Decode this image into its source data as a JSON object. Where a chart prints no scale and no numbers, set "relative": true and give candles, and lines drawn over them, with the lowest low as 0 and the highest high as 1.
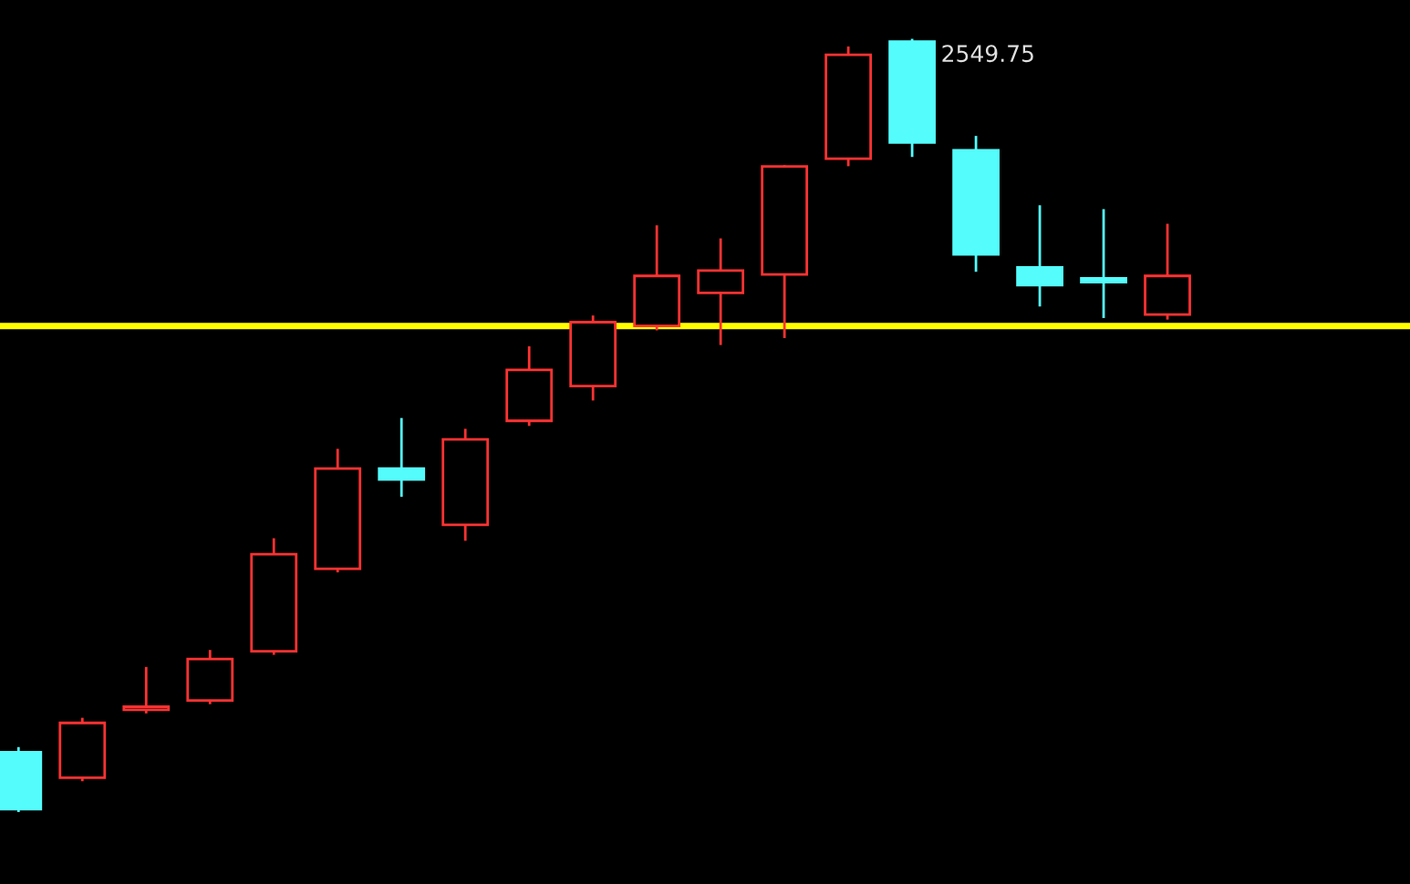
{
  "chart_data": {
    "type": "candlestick",
    "relative": true,
    "categories": [
      null,
      null,
      null,
      null,
      null,
      null,
      null,
      null,
      null,
      null,
      null,
      null,
      null,
      null,
      null,
      null,
      null,
      null,
      null
    ],
    "ohlc": [
      [
        0.076,
        0.081,
        0,
        0.002
      ],
      [
        0.043,
        0.119,
        0.04,
        0.114
      ],
      [
        0.131,
        0.185,
        0.128,
        0.135
      ],
      [
        0.143,
        0.207,
        0.14,
        0.197
      ],
      [
        0.207,
        0.352,
        0.204,
        0.333
      ],
      [
        0.314,
        0.468,
        0.311,
        0.444
      ],
      [
        0.444,
        0.508,
        0.409,
        0.43
      ],
      [
        0.371,
        0.494,
        0.352,
        0.482
      ],
      [
        0.506,
        0.601,
        0.501,
        0.572
      ],
      [
        0.551,
        0.641,
        0.534,
        0.634
      ],
      [
        0.629,
        0.758,
        0.625,
        0.694
      ],
      [
        0.672,
        0.741,
        0.606,
        0.701
      ],
      [
        0.696,
        0.836,
        0.615,
        0.836
      ],
      [
        0.846,
        0.99,
        0.838,
        0.981
      ],
      [
        0.998,
        1,
        0.85,
        0.867
      ],
      [
        0.857,
        0.874,
        0.701,
        0.722
      ],
      [
        0.705,
        0.784,
        0.656,
        0.682
      ],
      [
        0.691,
        0.779,
        0.641,
        0.686
      ],
      [
        0.644,
        0.76,
        0.639,
        0.694
      ]
    ],
    "colors": [
      "#54fcfc",
      "#ff3232",
      "#ff3232",
      "#ff3232",
      "#ff3232",
      "#ff3232",
      "#54fcfc",
      "#ff3232",
      "#ff3232",
      "#ff3232",
      "#ff3232",
      "#ff3232",
      "#ff3232",
      "#ff3232",
      "#54fcfc",
      "#54fcfc",
      "#54fcfc",
      "#54fcfc",
      "#ff3232"
    ],
    "ref_lines": [
      {
        "axis": "y",
        "value": 0.629,
        "color": "#ffff00"
      }
    ],
    "annotations": [
      "2549.75"
    ]
  }
}
